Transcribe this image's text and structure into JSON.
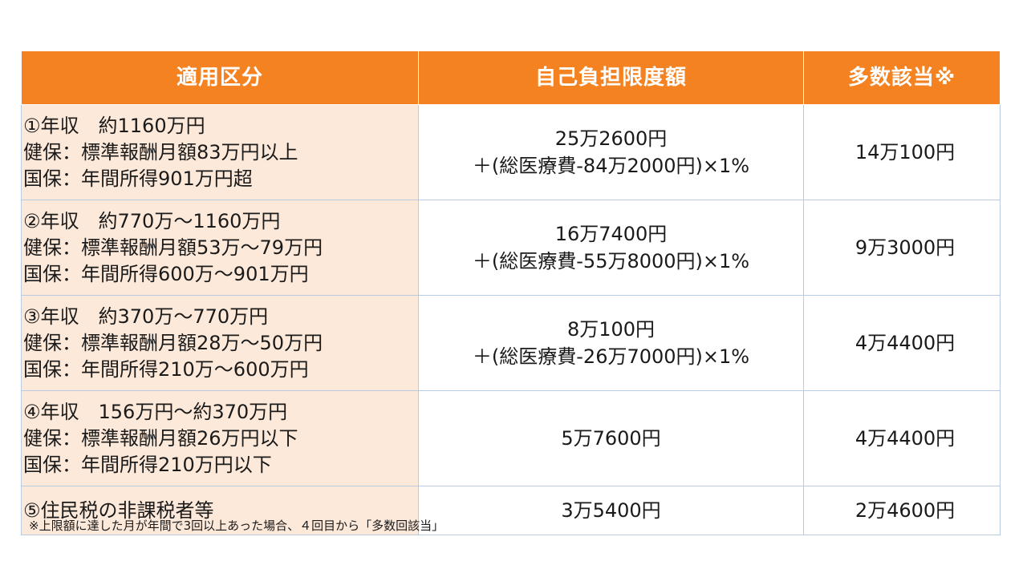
{
  "table": {
    "headers": [
      "適用区分",
      "自己負担限度額",
      "多数該当※"
    ],
    "rows": [
      {
        "category": [
          "①年収　約1160万円",
          "健保：標準報酬月額83万円以上",
          "国保：年間所得901万円超"
        ],
        "limit": [
          "25万2600円",
          "＋(総医療費-84万2000円)×1%"
        ],
        "multiple": "14万100円"
      },
      {
        "category": [
          "②年収　約770万～1160万円",
          "健保：標準報酬月額53万～79万円",
          "国保：年間所得600万～901万円"
        ],
        "limit": [
          "16万7400円",
          "＋(総医療費-55万8000円)×1%"
        ],
        "multiple": "9万3000円"
      },
      {
        "category": [
          "③年収　約370万～770万円",
          "健保：標準報酬月額28万～50万円",
          "国保：年間所得210万～600万円"
        ],
        "limit": [
          "8万100円",
          "＋(総医療費-26万7000円)×1%"
        ],
        "multiple": "4万4400円"
      },
      {
        "category": [
          "④年収　156万円～約370万円",
          "健保：標準報酬月額26万円以下",
          "国保：年間所得210万円以下"
        ],
        "limit": [
          "5万7600円"
        ],
        "multiple": "4万4400円"
      },
      {
        "category": [
          "⑤住民税の非課税者等"
        ],
        "limit": [
          "3万5400円"
        ],
        "multiple": "2万4600円"
      }
    ]
  },
  "footnote": "※上限額に達した月が年間で3回以上あった場合、４回目から「多数回該当」",
  "colors": {
    "header_bg": "#f58220",
    "header_text": "#ffffff",
    "category_bg": "#fde9da",
    "border": "#b8cbe0"
  }
}
